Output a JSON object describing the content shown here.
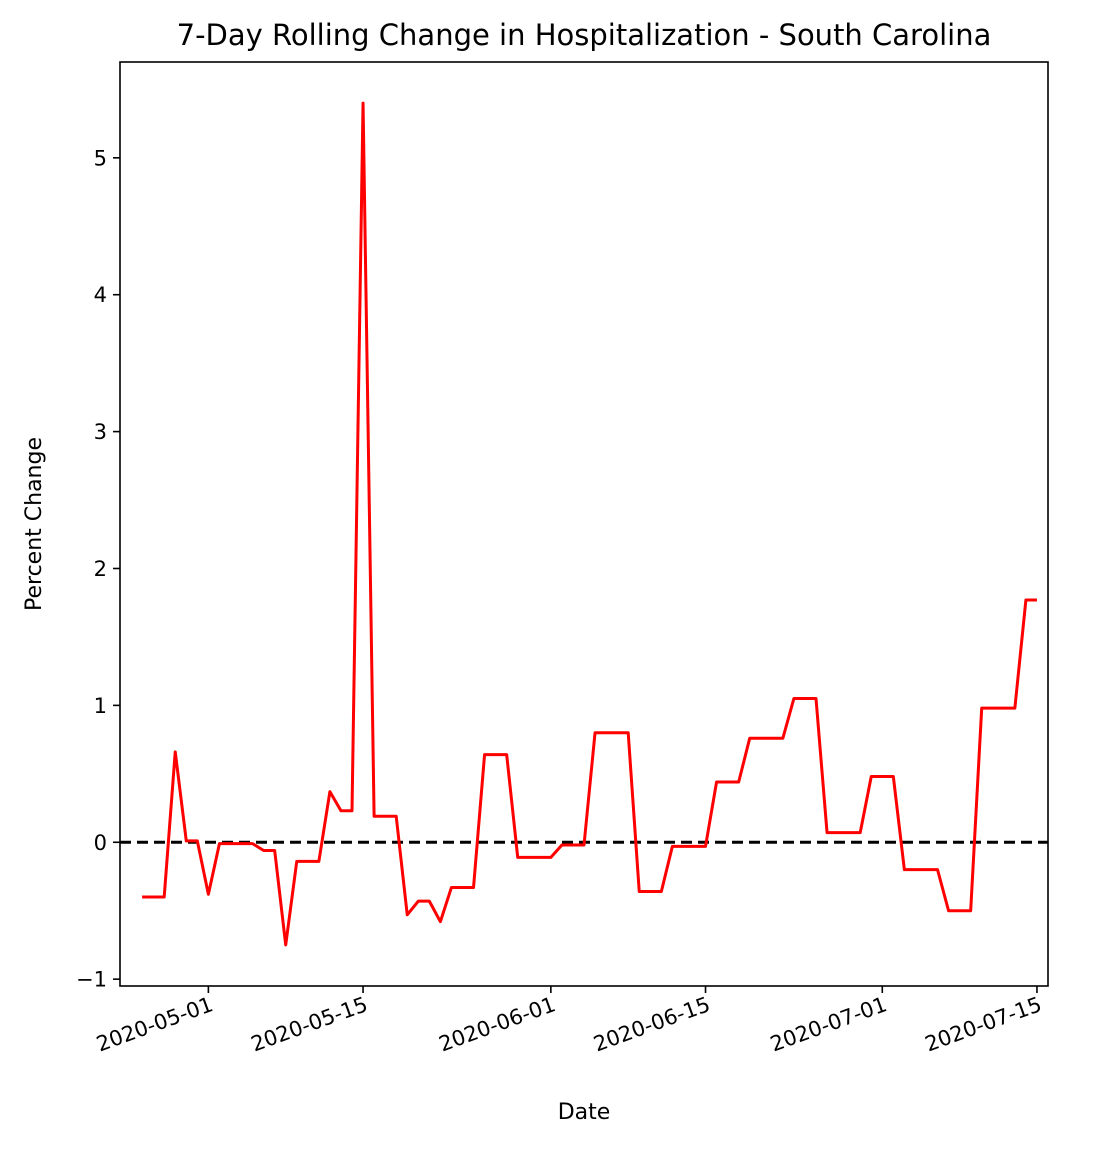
{
  "chart_data": {
    "type": "line",
    "title": "7-Day Rolling Change in Hospitalization - South Carolina",
    "xlabel": "Date",
    "ylabel": "Percent Change",
    "xlim": [
      "2020-04-23",
      "2020-07-16"
    ],
    "ylim": [
      -1.05,
      5.7
    ],
    "y_ticks": [
      -1,
      0,
      1,
      2,
      3,
      4,
      5
    ],
    "y_tick_labels": [
      "−1",
      "0",
      "1",
      "2",
      "3",
      "4",
      "5"
    ],
    "x_ticks": [
      "2020-05-01",
      "2020-05-15",
      "2020-06-01",
      "2020-06-15",
      "2020-07-01",
      "2020-07-15"
    ],
    "x_tick_labels": [
      "2020-05-01",
      "2020-05-15",
      "2020-06-01",
      "2020-06-15",
      "2020-07-01",
      "2020-07-15"
    ],
    "grid": false,
    "reference_line": {
      "y": 0,
      "style": "dashed",
      "color": "#000000"
    },
    "series": [
      {
        "color": "#ff0000",
        "x": [
          "2020-04-25",
          "2020-04-26",
          "2020-04-27",
          "2020-04-28",
          "2020-04-29",
          "2020-04-30",
          "2020-05-01",
          "2020-05-02",
          "2020-05-03",
          "2020-05-04",
          "2020-05-05",
          "2020-05-06",
          "2020-05-07",
          "2020-05-08",
          "2020-05-09",
          "2020-05-10",
          "2020-05-11",
          "2020-05-12",
          "2020-05-13",
          "2020-05-14",
          "2020-05-15",
          "2020-05-16",
          "2020-05-17",
          "2020-05-18",
          "2020-05-19",
          "2020-05-20",
          "2020-05-21",
          "2020-05-22",
          "2020-05-23",
          "2020-05-24",
          "2020-05-25",
          "2020-05-26",
          "2020-05-27",
          "2020-05-28",
          "2020-05-29",
          "2020-05-30",
          "2020-05-31",
          "2020-06-01",
          "2020-06-02",
          "2020-06-03",
          "2020-06-04",
          "2020-06-05",
          "2020-06-06",
          "2020-06-07",
          "2020-06-08",
          "2020-06-09",
          "2020-06-10",
          "2020-06-11",
          "2020-06-12",
          "2020-06-13",
          "2020-06-14",
          "2020-06-15",
          "2020-06-16",
          "2020-06-17",
          "2020-06-18",
          "2020-06-19",
          "2020-06-20",
          "2020-06-21",
          "2020-06-22",
          "2020-06-23",
          "2020-06-24",
          "2020-06-25",
          "2020-06-26",
          "2020-06-27",
          "2020-06-28",
          "2020-06-29",
          "2020-06-30",
          "2020-07-01",
          "2020-07-02",
          "2020-07-03",
          "2020-07-04",
          "2020-07-05",
          "2020-07-06",
          "2020-07-07",
          "2020-07-08",
          "2020-07-09",
          "2020-07-10",
          "2020-07-11",
          "2020-07-12",
          "2020-07-13",
          "2020-07-14",
          "2020-07-15"
        ],
        "values": [
          -0.4,
          -0.4,
          -0.4,
          0.66,
          0.01,
          0.01,
          -0.38,
          -0.01,
          -0.01,
          -0.01,
          -0.01,
          -0.06,
          -0.06,
          -0.75,
          -0.14,
          -0.14,
          -0.14,
          0.37,
          0.23,
          0.23,
          5.4,
          0.19,
          0.19,
          0.19,
          -0.53,
          -0.43,
          -0.43,
          -0.58,
          -0.33,
          -0.33,
          -0.33,
          0.64,
          0.64,
          0.64,
          -0.11,
          -0.11,
          -0.11,
          -0.11,
          -0.02,
          -0.02,
          -0.02,
          0.8,
          0.8,
          0.8,
          0.8,
          -0.36,
          -0.36,
          -0.36,
          -0.03,
          -0.03,
          -0.03,
          -0.03,
          0.44,
          0.44,
          0.44,
          0.76,
          0.76,
          0.76,
          0.76,
          1.05,
          1.05,
          1.05,
          0.07,
          0.07,
          0.07,
          0.07,
          0.48,
          0.48,
          0.48,
          -0.2,
          -0.2,
          -0.2,
          -0.2,
          -0.5,
          -0.5,
          -0.5,
          0.98,
          0.98,
          0.98,
          0.98,
          1.77,
          1.77
        ]
      }
    ]
  }
}
